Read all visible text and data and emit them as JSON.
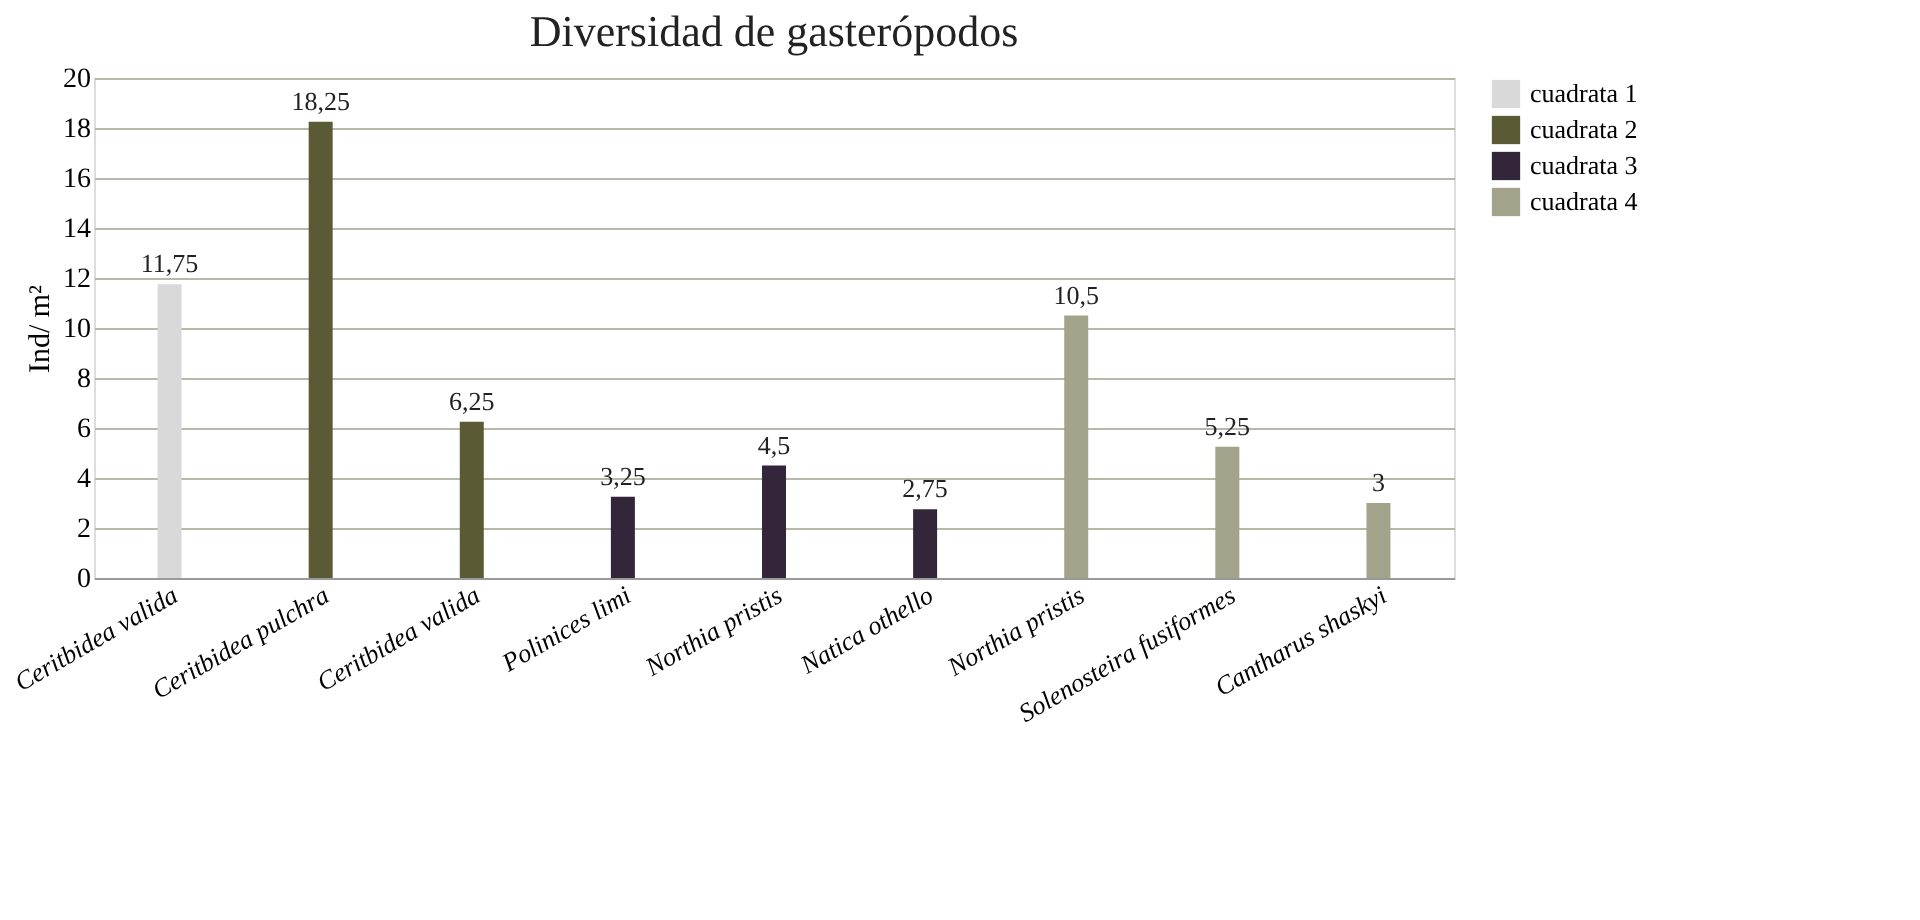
{
  "chart_data": {
    "type": "bar",
    "title": "Diversidad de gasterópodos",
    "ylabel": "Ind/ m²",
    "categories": [
      "Ceritbidea valida",
      "Ceritbidea pulchra",
      "Ceritbidea valida",
      "Polinices limi",
      "Northia pristis",
      "Natica othello",
      "Northia pristis",
      "Solenosteira fusiformes",
      "Cantharus shaskyi"
    ],
    "series": [
      {
        "name": "cuadrata 1",
        "color": "#d9d9d9",
        "values": [
          11.75,
          null,
          null,
          null,
          null,
          null,
          null,
          null,
          null
        ],
        "value_labels": [
          "11,75",
          null,
          null,
          null,
          null,
          null,
          null,
          null,
          null
        ]
      },
      {
        "name": "cuadrata 2",
        "color": "#5a5a35",
        "values": [
          null,
          18.25,
          6.25,
          null,
          null,
          null,
          null,
          null,
          null
        ],
        "value_labels": [
          null,
          "18,25",
          "6,25",
          null,
          null,
          null,
          null,
          null,
          null
        ]
      },
      {
        "name": "cuadrata 3",
        "color": "#33263a",
        "values": [
          null,
          null,
          null,
          3.25,
          4.5,
          2.75,
          null,
          null,
          null
        ],
        "value_labels": [
          null,
          null,
          null,
          "3,25",
          "4,5",
          "2,75",
          null,
          null,
          null
        ]
      },
      {
        "name": "cuadrata 4",
        "color": "#a3a38c",
        "values": [
          null,
          null,
          null,
          null,
          null,
          null,
          10.5,
          5.25,
          3
        ],
        "value_labels": [
          null,
          null,
          null,
          null,
          null,
          null,
          "10,5",
          "5,25",
          "3"
        ]
      }
    ],
    "ylim": [
      0,
      20
    ],
    "yticks": [
      0,
      2,
      4,
      6,
      8,
      10,
      12,
      14,
      16,
      18,
      20
    ],
    "grid": "y",
    "legend": "right"
  }
}
